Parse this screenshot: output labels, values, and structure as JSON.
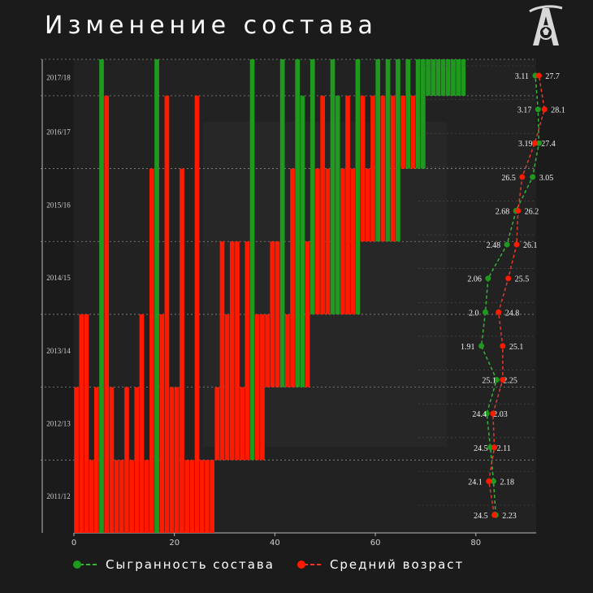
{
  "page": {
    "title": "Изменение состава"
  },
  "colors": {
    "background": "#1b1b1b",
    "green": "#1f9a1f",
    "red": "#ff1a00",
    "green_line": "#39b239",
    "red_line": "#e23a2a",
    "axis": "#cfcfcf"
  },
  "legend": {
    "cohesion": "Сыгранность состава",
    "age": "Средний возраст"
  },
  "chart_data": {
    "type": "bar",
    "title": "Изменение состава",
    "seasons": [
      "2011/12",
      "2012/13",
      "2013/14",
      "2014/15",
      "2015/16",
      "2016/17",
      "2017/18"
    ],
    "x_ticks": [
      0,
      20,
      40,
      60,
      80
    ],
    "xlim": [
      0,
      92
    ],
    "players": [
      {
        "start": 0,
        "end": 1,
        "color": "red"
      },
      {
        "start": 0,
        "end": 2,
        "color": "red"
      },
      {
        "start": 0,
        "end": 2,
        "color": "red"
      },
      {
        "start": 0,
        "end": 0,
        "color": "red"
      },
      {
        "start": 0,
        "end": 1,
        "color": "red"
      },
      {
        "start": 0,
        "end": 6,
        "color": "green"
      },
      {
        "start": 0,
        "end": 5,
        "color": "red"
      },
      {
        "start": 0,
        "end": 1,
        "color": "red"
      },
      {
        "start": 0,
        "end": 0,
        "color": "red"
      },
      {
        "start": 0,
        "end": 0,
        "color": "red"
      },
      {
        "start": 0,
        "end": 1,
        "color": "red"
      },
      {
        "start": 0,
        "end": 0,
        "color": "red"
      },
      {
        "start": 0,
        "end": 1,
        "color": "red"
      },
      {
        "start": 0,
        "end": 2,
        "color": "red"
      },
      {
        "start": 0,
        "end": 0,
        "color": "red"
      },
      {
        "start": 0,
        "end": 4,
        "color": "red"
      },
      {
        "start": 0,
        "end": 6,
        "color": "green"
      },
      {
        "start": 0,
        "end": 2,
        "color": "red"
      },
      {
        "start": 0,
        "end": 5,
        "color": "red"
      },
      {
        "start": 0,
        "end": 1,
        "color": "red"
      },
      {
        "start": 0,
        "end": 1,
        "color": "red"
      },
      {
        "start": 0,
        "end": 4,
        "color": "red"
      },
      {
        "start": 0,
        "end": 0,
        "color": "red"
      },
      {
        "start": 0,
        "end": 0,
        "color": "red"
      },
      {
        "start": 0,
        "end": 5,
        "color": "red"
      },
      {
        "start": 0,
        "end": 0,
        "color": "red"
      },
      {
        "start": 0,
        "end": 0,
        "color": "red"
      },
      {
        "start": 0,
        "end": 0,
        "color": "red"
      },
      {
        "start": 1,
        "end": 1,
        "color": "red"
      },
      {
        "start": 1,
        "end": 3,
        "color": "red"
      },
      {
        "start": 1,
        "end": 2,
        "color": "red"
      },
      {
        "start": 1,
        "end": 3,
        "color": "red"
      },
      {
        "start": 1,
        "end": 3,
        "color": "red"
      },
      {
        "start": 1,
        "end": 1,
        "color": "red"
      },
      {
        "start": 1,
        "end": 3,
        "color": "red"
      },
      {
        "start": 1,
        "end": 6,
        "color": "green"
      },
      {
        "start": 1,
        "end": 2,
        "color": "red"
      },
      {
        "start": 1,
        "end": 2,
        "color": "red"
      },
      {
        "start": 2,
        "end": 2,
        "color": "red"
      },
      {
        "start": 2,
        "end": 3,
        "color": "red"
      },
      {
        "start": 2,
        "end": 3,
        "color": "red"
      },
      {
        "start": 2,
        "end": 6,
        "color": "green"
      },
      {
        "start": 2,
        "end": 2,
        "color": "red"
      },
      {
        "start": 2,
        "end": 4,
        "color": "red"
      },
      {
        "start": 2,
        "end": 6,
        "color": "green"
      },
      {
        "start": 2,
        "end": 5,
        "color": "green"
      },
      {
        "start": 2,
        "end": 3,
        "color": "red"
      },
      {
        "start": 3,
        "end": 6,
        "color": "green"
      },
      {
        "start": 3,
        "end": 4,
        "color": "red"
      },
      {
        "start": 3,
        "end": 5,
        "color": "red"
      },
      {
        "start": 3,
        "end": 4,
        "color": "red"
      },
      {
        "start": 3,
        "end": 6,
        "color": "green"
      },
      {
        "start": 3,
        "end": 5,
        "color": "green"
      },
      {
        "start": 3,
        "end": 4,
        "color": "red"
      },
      {
        "start": 3,
        "end": 5,
        "color": "red"
      },
      {
        "start": 3,
        "end": 4,
        "color": "red"
      },
      {
        "start": 3,
        "end": 6,
        "color": "green"
      },
      {
        "start": 4,
        "end": 5,
        "color": "red"
      },
      {
        "start": 4,
        "end": 4,
        "color": "red"
      },
      {
        "start": 4,
        "end": 5,
        "color": "red"
      },
      {
        "start": 4,
        "end": 6,
        "color": "green"
      },
      {
        "start": 4,
        "end": 5,
        "color": "red"
      },
      {
        "start": 4,
        "end": 6,
        "color": "green"
      },
      {
        "start": 4,
        "end": 5,
        "color": "red"
      },
      {
        "start": 4,
        "end": 6,
        "color": "green"
      },
      {
        "start": 5,
        "end": 5,
        "color": "red"
      },
      {
        "start": 5,
        "end": 6,
        "color": "green"
      },
      {
        "start": 5,
        "end": 5,
        "color": "red"
      },
      {
        "start": 5,
        "end": 6,
        "color": "green"
      },
      {
        "start": 5,
        "end": 6,
        "color": "green"
      },
      {
        "start": 6,
        "end": 6,
        "color": "green"
      },
      {
        "start": 6,
        "end": 6,
        "color": "green"
      },
      {
        "start": 6,
        "end": 6,
        "color": "green"
      },
      {
        "start": 6,
        "end": 6,
        "color": "green"
      },
      {
        "start": 6,
        "end": 6,
        "color": "green"
      },
      {
        "start": 6,
        "end": 6,
        "color": "green"
      },
      {
        "start": 6,
        "end": 6,
        "color": "green"
      },
      {
        "start": 6,
        "end": 6,
        "color": "green"
      }
    ],
    "cohesion": [
      2.23,
      2.18,
      2.11,
      2.03,
      2.25,
      1.91,
      2.0,
      2.06,
      2.48,
      2.68,
      3.05,
      3.19,
      3.17,
      3.11
    ],
    "cohesion_labels": [
      "2.23",
      "2.18",
      "2.11",
      "2.03",
      "2.25",
      "1.91",
      "2.0",
      "2.06",
      "2.48",
      "2.68",
      "3.05",
      "3.19",
      "3.17",
      "3.11"
    ],
    "age": [
      24.5,
      24.1,
      24.5,
      24.4,
      25.1,
      25.1,
      24.8,
      25.5,
      26.1,
      26.2,
      26.5,
      27.4,
      28.1,
      27.7
    ],
    "age_labels": [
      "24.5",
      "24.1",
      "24.5",
      "24.4",
      "25.1",
      "25.1",
      "24.8",
      "25.5",
      "26.1",
      "26.2",
      "26.5",
      "27.4",
      "28.1",
      "27.7"
    ],
    "cohesion_label_side": [
      "right",
      "right",
      "right",
      "right",
      "right",
      "left",
      "left",
      "left",
      "left",
      "left",
      "right",
      "left",
      "left",
      "left"
    ],
    "age_label_side": [
      "left",
      "left",
      "left",
      "left",
      "left",
      "right",
      "right",
      "right",
      "right",
      "right",
      "left",
      "right",
      "right",
      "right"
    ]
  }
}
